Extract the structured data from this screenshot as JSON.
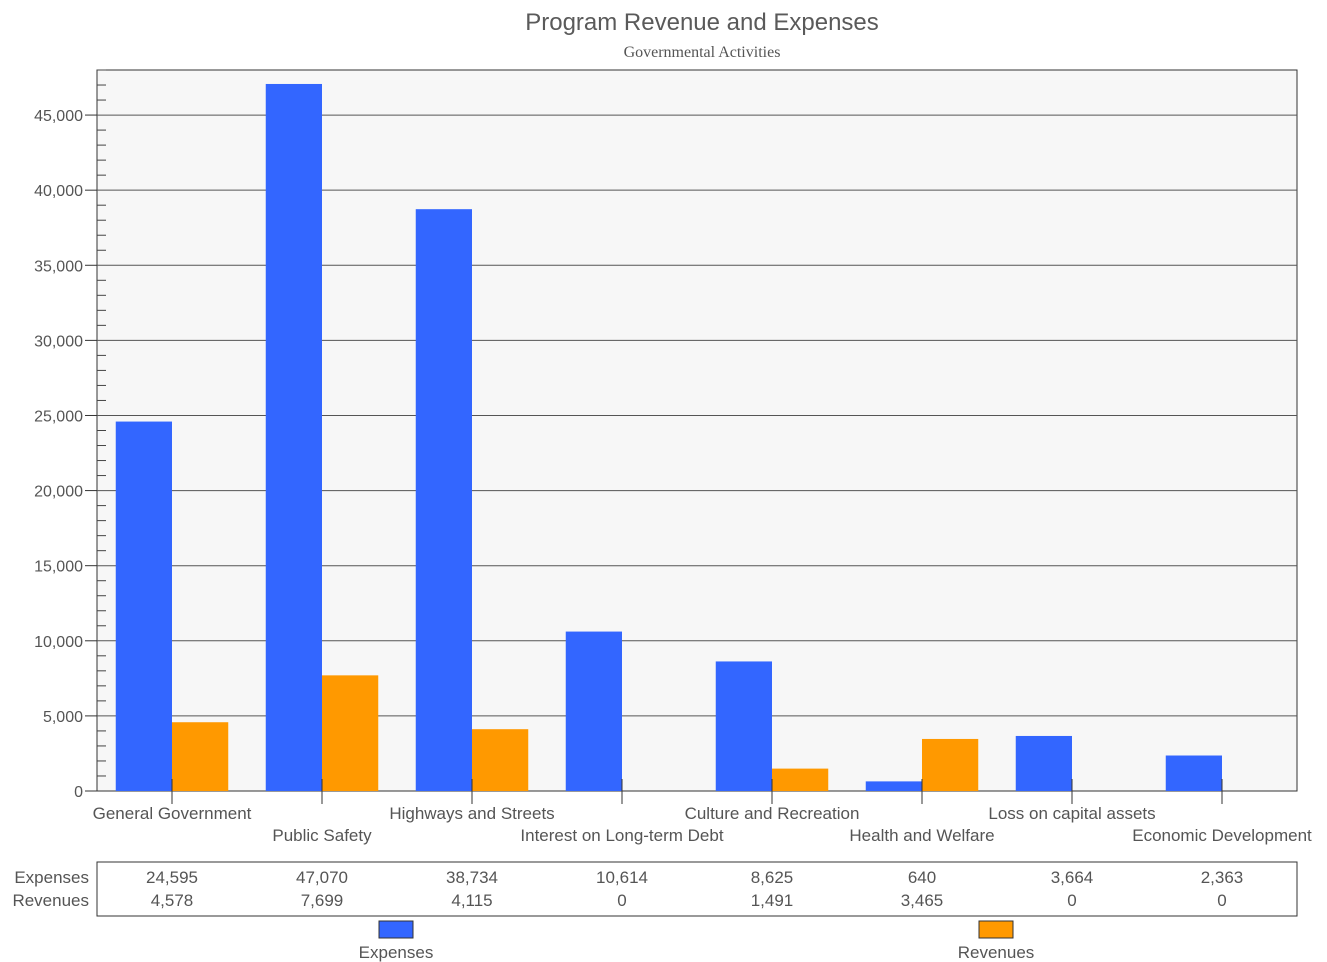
{
  "chart_data": {
    "type": "bar",
    "title": "Program Revenue and Expenses",
    "subtitle": "Governmental Activities",
    "categories": [
      "General Government",
      "Public Safety",
      "Highways and Streets",
      "Interest on Long-term Debt",
      "Culture and Recreation",
      "Health and Welfare",
      "Loss on capital assets",
      "Economic Development"
    ],
    "series": [
      {
        "name": "Expenses",
        "color": "#3366ff",
        "values": [
          24595,
          47070,
          38734,
          10614,
          8625,
          640,
          3664,
          2363
        ],
        "display": [
          "24,595",
          "47,070",
          "38,734",
          "10,614",
          "8,625",
          "640",
          "3,664",
          "2,363"
        ]
      },
      {
        "name": "Revenues",
        "color": "#ff9900",
        "values": [
          4578,
          7699,
          4115,
          0,
          1491,
          3465,
          0,
          0
        ],
        "display": [
          "4,578",
          "7,699",
          "4,115",
          "0",
          "1,491",
          "3,465",
          "0",
          "0"
        ]
      }
    ],
    "ylim": [
      0,
      48000
    ],
    "yticks": [
      0,
      5000,
      10000,
      15000,
      20000,
      25000,
      30000,
      35000,
      40000,
      45000
    ],
    "ytick_labels": [
      "0",
      "5,000",
      "10,000",
      "15,000",
      "20,000",
      "25,000",
      "30,000",
      "35,000",
      "40,000",
      "45,000"
    ],
    "grid": true,
    "plot_background": "#f7f7f7",
    "legend": "bottom",
    "data_table": true
  }
}
